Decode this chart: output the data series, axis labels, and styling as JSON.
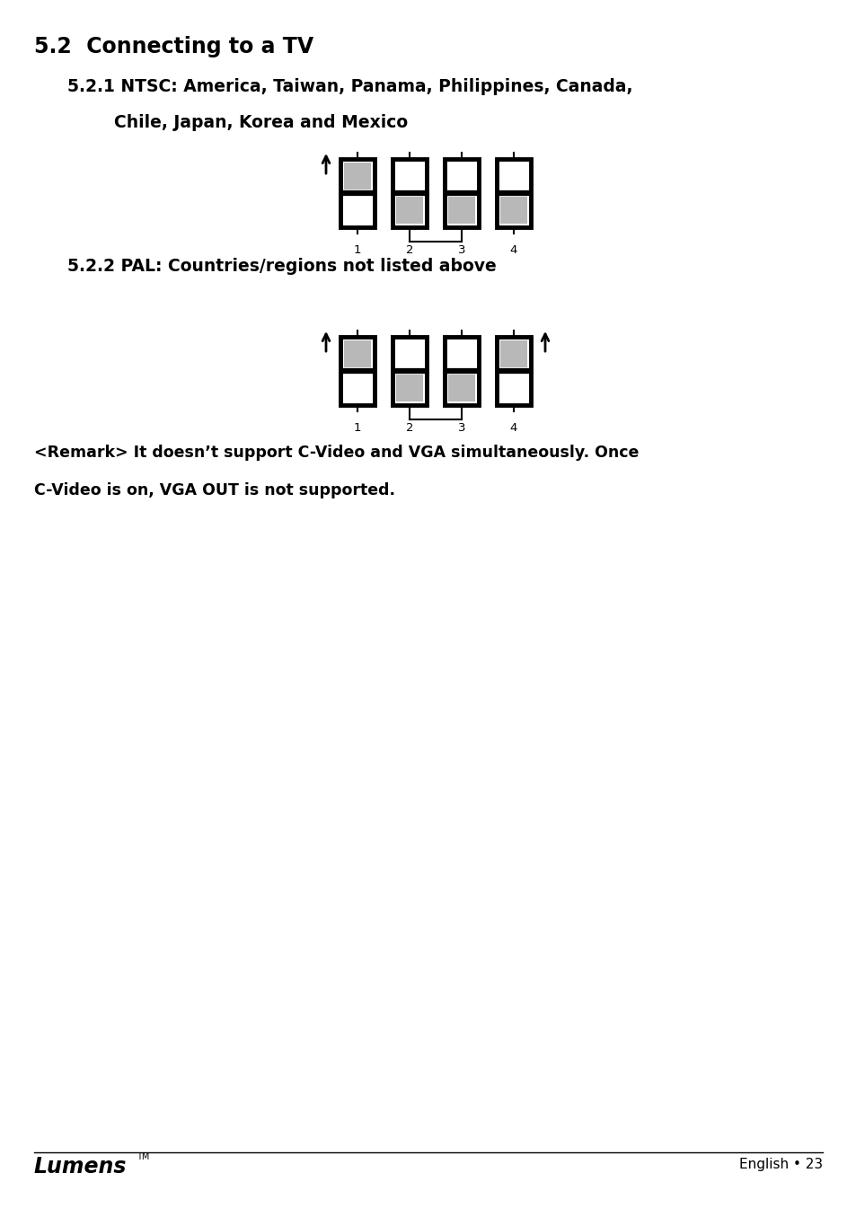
{
  "title_main": "5.2  Connecting to a TV",
  "section1_title_line1": "5.2.1 NTSC: America, Taiwan, Panama, Philippines, Canada,",
  "section1_title_line2": "        Chile, Japan, Korea and Mexico",
  "section2_title": "5.2.2 PAL: Countries/regions not listed above",
  "remark_line1": "<Remark> It doesn’t support C-Video and VGA simultaneously. Once",
  "remark_line2": "C-Video is on, VGA OUT is not supported.",
  "footer_left": "Lumens",
  "footer_right": "English • 23",
  "bg_color": "#ffffff",
  "text_color": "#000000",
  "switch_gray": "#b8b8b8",
  "switch_white": "#ffffff",
  "switch_border": "#000000",
  "ntsc_switches": [
    {
      "top": "gray",
      "bottom": "white",
      "arrow_left": true,
      "arrow_right": false
    },
    {
      "top": "white",
      "bottom": "gray",
      "arrow_left": false,
      "arrow_right": false
    },
    {
      "top": "white",
      "bottom": "gray",
      "arrow_left": false,
      "arrow_right": false
    },
    {
      "top": "white",
      "bottom": "gray",
      "arrow_left": false,
      "arrow_right": false
    }
  ],
  "ntsc_labels": [
    "1",
    "2",
    "3",
    "4"
  ],
  "pal_switches": [
    {
      "top": "gray",
      "bottom": "white",
      "arrow_left": true,
      "arrow_right": false
    },
    {
      "top": "white",
      "bottom": "gray",
      "arrow_left": false,
      "arrow_right": false
    },
    {
      "top": "white",
      "bottom": "gray",
      "arrow_left": false,
      "arrow_right": false
    },
    {
      "top": "gray",
      "bottom": "white",
      "arrow_left": false,
      "arrow_right": true
    }
  ],
  "pal_labels": [
    "1",
    "2",
    "3",
    "4"
  ]
}
